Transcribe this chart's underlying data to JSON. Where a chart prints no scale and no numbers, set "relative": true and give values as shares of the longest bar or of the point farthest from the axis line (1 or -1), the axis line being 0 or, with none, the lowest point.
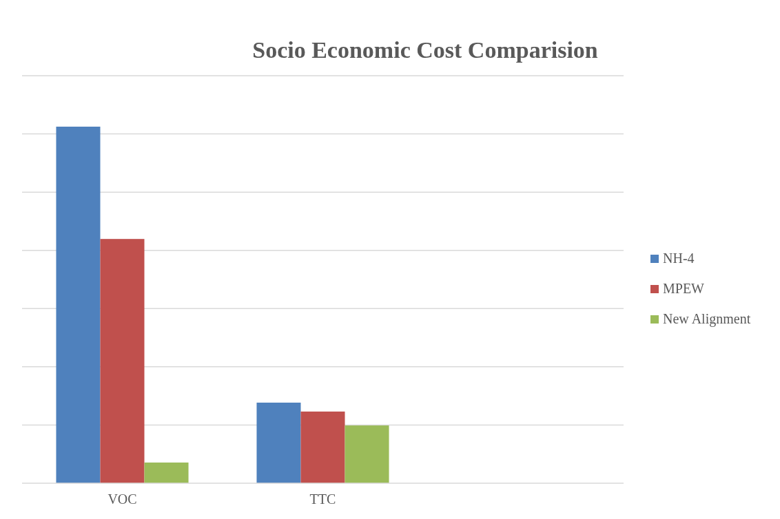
{
  "chart_data": {
    "type": "bar",
    "title": "Socio Economic Cost Comparision",
    "relative": true,
    "grid": "y",
    "legend": "right",
    "categories": [
      "VOC",
      "TTC",
      null
    ],
    "series": [
      {
        "name": "NH-4",
        "color": "#4f81bd",
        "values": [
          1,
          0.226,
          null
        ]
      },
      {
        "name": "MPEW",
        "color": "#c0504d",
        "values": [
          0.685,
          0.201,
          null
        ]
      },
      {
        "name": "New Alignment",
        "color": "#9bbb59",
        "values": [
          0.058,
          0.162,
          null
        ]
      }
    ]
  }
}
